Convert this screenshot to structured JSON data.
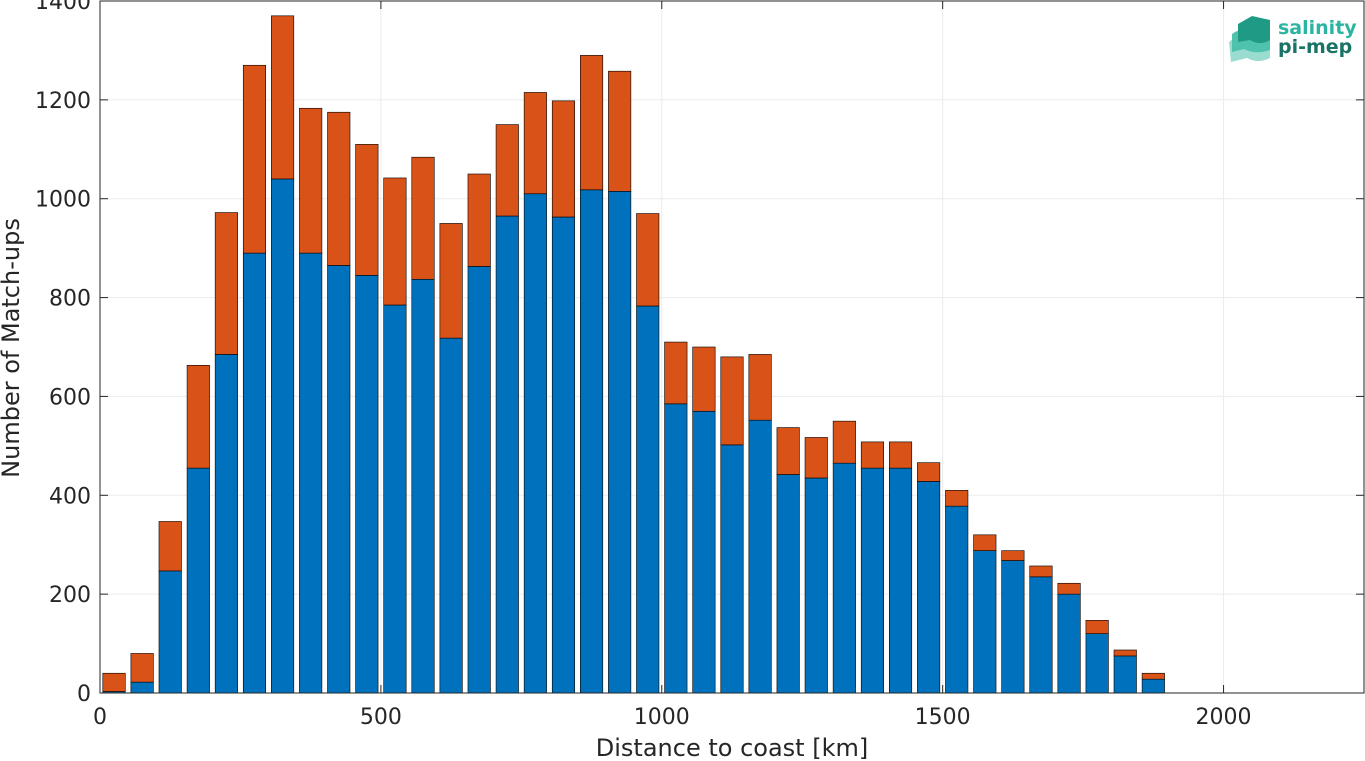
{
  "chart_data": {
    "type": "bar",
    "stacked": true,
    "xlabel": "Distance to coast [km]",
    "ylabel": "Number of Match-ups",
    "xlim": [
      0,
      2250
    ],
    "ylim": [
      0,
      1400
    ],
    "xticks": [
      0,
      500,
      1000,
      1500,
      2000
    ],
    "yticks": [
      0,
      200,
      400,
      600,
      800,
      1000,
      1200,
      1400
    ],
    "grid": true,
    "bin_width": 50,
    "x": [
      25,
      75,
      125,
      175,
      225,
      275,
      325,
      375,
      425,
      475,
      525,
      575,
      625,
      675,
      725,
      775,
      825,
      875,
      925,
      975,
      1025,
      1075,
      1125,
      1175,
      1225,
      1275,
      1325,
      1375,
      1425,
      1475,
      1525,
      1575,
      1625,
      1675,
      1725,
      1775,
      1825,
      1875
    ],
    "series": [
      {
        "color": "#0072BD",
        "values": [
          3,
          22,
          247,
          455,
          685,
          890,
          1040,
          890,
          865,
          845,
          785,
          837,
          718,
          863,
          965,
          1010,
          963,
          1018,
          1015,
          783,
          585,
          570,
          502,
          552,
          442,
          435,
          465,
          455,
          455,
          428,
          378,
          288,
          268,
          235,
          200,
          120,
          75,
          28
        ]
      },
      {
        "color": "#D95319",
        "values": [
          37,
          58,
          100,
          208,
          287,
          380,
          330,
          293,
          310,
          265,
          257,
          247,
          232,
          187,
          185,
          205,
          235,
          272,
          243,
          187,
          125,
          130,
          178,
          133,
          95,
          82,
          85,
          53,
          53,
          38,
          32,
          32,
          20,
          22,
          22,
          27,
          12,
          12
        ]
      }
    ]
  },
  "logo": {
    "line1": "salinity",
    "line2": "pi-mep",
    "color1": "#2bb5a0",
    "color2": "#1a7466"
  }
}
